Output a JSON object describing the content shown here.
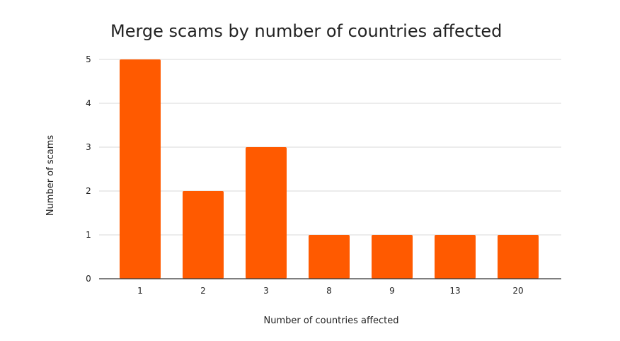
{
  "chart_data": {
    "type": "bar",
    "title": "Merge scams by number of countries affected",
    "xlabel": "Number of countries affected",
    "ylabel": "Number of scams",
    "categories": [
      "1",
      "2",
      "3",
      "8",
      "9",
      "13",
      "20"
    ],
    "series": [
      {
        "values": [
          5,
          2,
          3,
          1,
          1,
          1,
          1
        ]
      }
    ],
    "ylim": [
      0,
      5
    ],
    "yticks": [
      0,
      1,
      2,
      3,
      4,
      5
    ],
    "grid": true,
    "legend": "none",
    "colors": {
      "bar": "#ff5a00",
      "grid": "#d9d9d9",
      "axis": "#333333"
    }
  }
}
